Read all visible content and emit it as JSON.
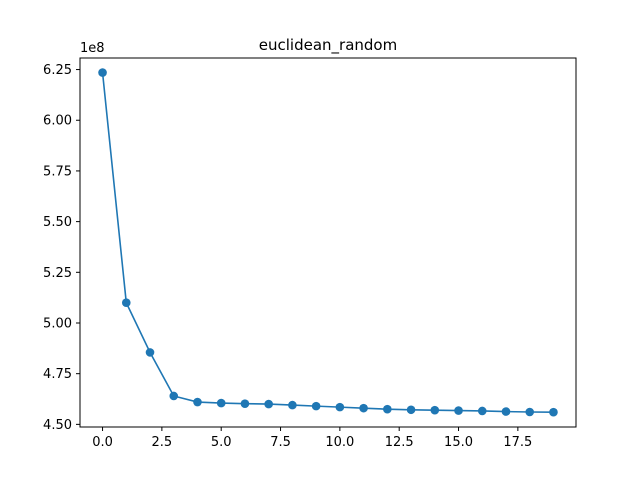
{
  "chart_data": {
    "type": "line",
    "title": "euclidean_random",
    "xlabel": "",
    "ylabel": "",
    "y_offset_label": "1e8",
    "xlim": [
      -0.95,
      19.95
    ],
    "ylim": [
      4.487,
      6.307
    ],
    "x_ticks": [
      0.0,
      2.5,
      5.0,
      7.5,
      10.0,
      12.5,
      15.0,
      17.5
    ],
    "x_tick_labels": [
      "0.0",
      "2.5",
      "5.0",
      "7.5",
      "10.0",
      "12.5",
      "15.0",
      "17.5"
    ],
    "y_ticks": [
      4.5,
      4.75,
      5.0,
      5.25,
      5.5,
      5.75,
      6.0,
      6.25
    ],
    "y_tick_labels": [
      "4.50",
      "4.75",
      "5.00",
      "5.25",
      "5.50",
      "5.75",
      "6.00",
      "6.25"
    ],
    "grid": false,
    "series": [
      {
        "color": "#1f77b4",
        "marker": "circle",
        "x": [
          0,
          1,
          2,
          3,
          4,
          5,
          6,
          7,
          8,
          9,
          10,
          11,
          12,
          13,
          14,
          15,
          16,
          17,
          18,
          19
        ],
        "y": [
          6.235,
          5.1,
          4.855,
          4.64,
          4.61,
          4.605,
          4.602,
          4.6,
          4.595,
          4.59,
          4.585,
          4.58,
          4.575,
          4.572,
          4.57,
          4.568,
          4.566,
          4.563,
          4.561,
          4.56
        ]
      }
    ]
  }
}
